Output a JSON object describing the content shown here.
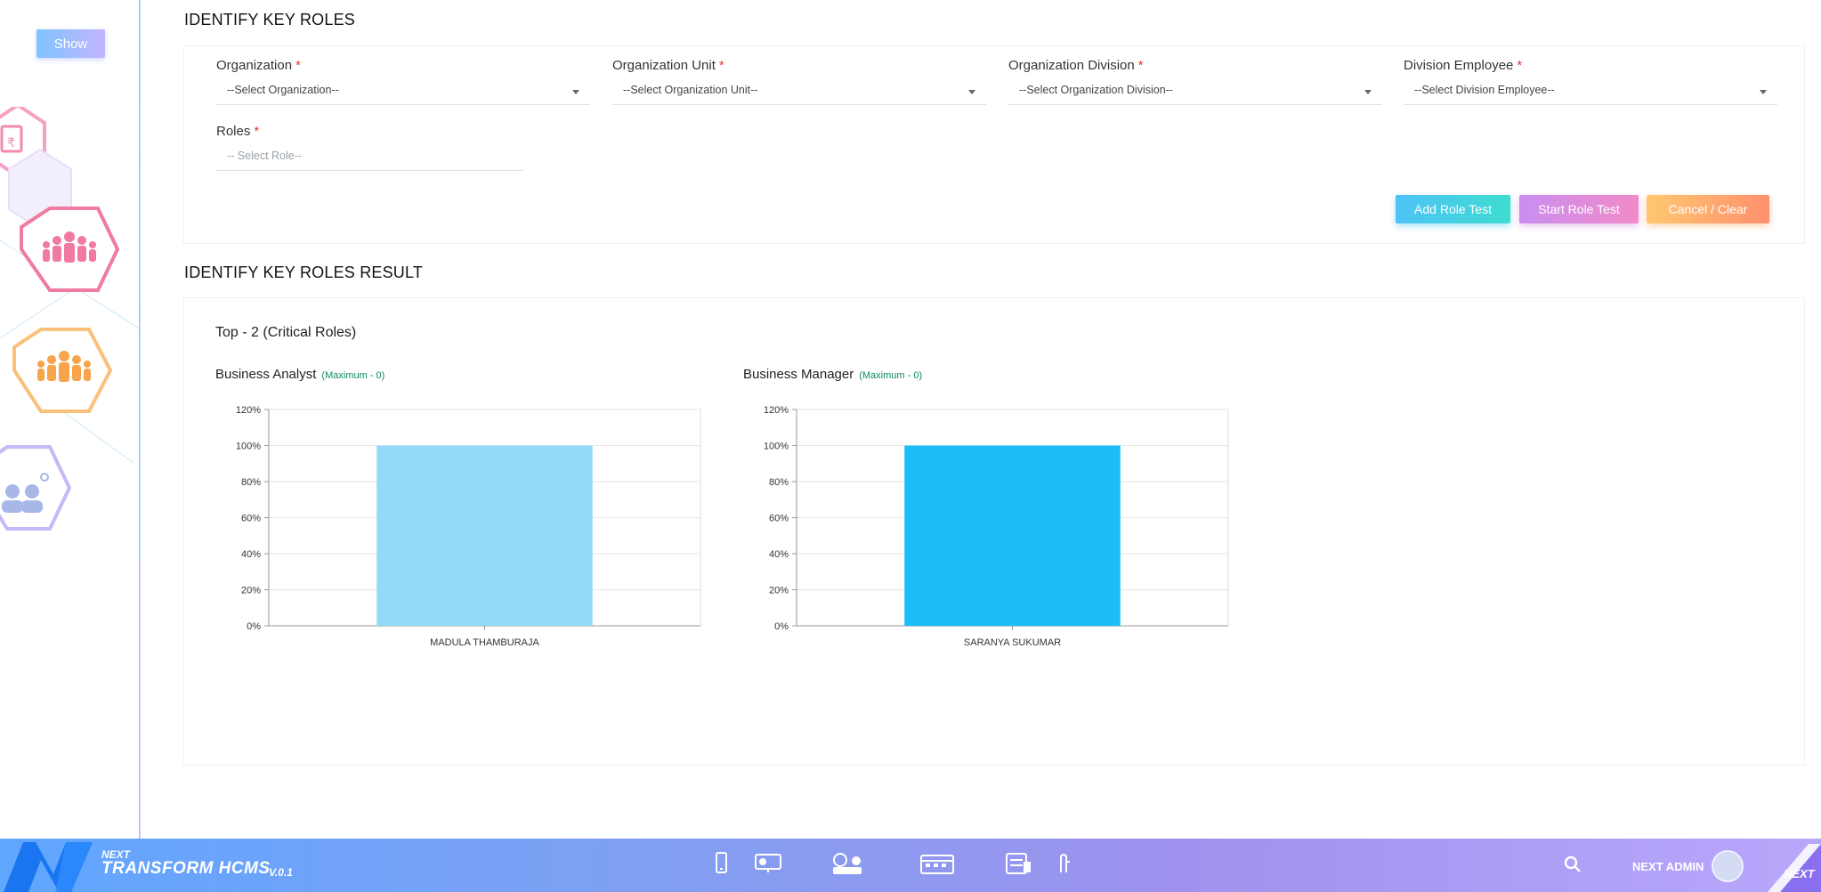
{
  "sidebar": {
    "show_label": "Show"
  },
  "identify": {
    "title": "IDENTIFY KEY ROLES",
    "fields": [
      {
        "label": "Organization",
        "value": "--Select Organization--"
      },
      {
        "label": "Organization Unit",
        "value": "--Select Organization Unit--"
      },
      {
        "label": "Organization Division",
        "value": "--Select Organization Division--"
      },
      {
        "label": "Division Employee",
        "value": "--Select Division Employee--"
      }
    ],
    "roles": {
      "label": "Roles",
      "placeholder": "-- Select Role--"
    },
    "required_mark": "*",
    "buttons": {
      "add": "Add Role Test",
      "start": "Start Role Test",
      "cancel": "Cancel / Clear"
    }
  },
  "result": {
    "title": "IDENTIFY KEY ROLES RESULT",
    "subtitle": "Top - 2 (Critical Roles)",
    "charts": [
      {
        "title": "Business Analyst",
        "max_label": "(Maximum - 0)"
      },
      {
        "title": "Business Manager",
        "max_label": "(Maximum - 0)"
      }
    ]
  },
  "chart_data": [
    {
      "type": "bar",
      "title": "Business Analyst",
      "categories": [
        "MADULA THAMBURAJA"
      ],
      "values": [
        100
      ],
      "ylim": [
        0,
        120
      ],
      "yticks": [
        "0%",
        "20%",
        "40%",
        "60%",
        "80%",
        "100%",
        "120%"
      ],
      "color": "#93d9f8",
      "grid": true
    },
    {
      "type": "bar",
      "title": "Business Manager",
      "categories": [
        "SARANYA SUKUMAR"
      ],
      "values": [
        100
      ],
      "ylim": [
        0,
        120
      ],
      "yticks": [
        "0%",
        "20%",
        "40%",
        "60%",
        "80%",
        "100%",
        "120%"
      ],
      "color": "#1cbdf8",
      "grid": true
    }
  ],
  "footer": {
    "brand_top": "NEXT",
    "brand_name": "TRANSFORM HCMS",
    "version": "V.0.1",
    "admin": "NEXT ADMIN",
    "corner_label": "NEXT"
  },
  "colors": {
    "accent_green": "#0a8a6b",
    "required_red": "#e53935"
  }
}
